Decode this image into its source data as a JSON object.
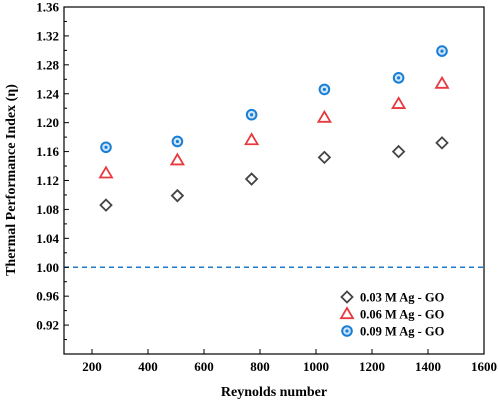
{
  "chart_data": {
    "type": "scatter",
    "title": "",
    "xlabel": "Reynolds number",
    "ylabel": "Thermal Performance Index (η)",
    "xlim": [
      100,
      1600
    ],
    "ylim": [
      0.88,
      1.36
    ],
    "xticks": [
      200,
      400,
      600,
      800,
      1000,
      1200,
      1400,
      1600
    ],
    "yticks": [
      0.92,
      0.96,
      1.0,
      1.04,
      1.08,
      1.12,
      1.16,
      1.2,
      1.24,
      1.28,
      1.32,
      1.36
    ],
    "ytick_labels": [
      "0.92",
      "0.96",
      "1.00",
      "1.04",
      "1.08",
      "1.12",
      "1.16",
      "1.20",
      "1.24",
      "1.28",
      "1.32",
      "1.36"
    ],
    "reference_line": {
      "y": 1.0,
      "style": "dashed",
      "color": "#1f78c8"
    },
    "grid": false,
    "legend_position": "bottom-right",
    "series": [
      {
        "name": "0.03 M Ag - GO",
        "marker": "diamond",
        "color": "#444444",
        "points": [
          [
            250,
            1.086
          ],
          [
            505,
            1.099
          ],
          [
            770,
            1.122
          ],
          [
            1030,
            1.152
          ],
          [
            1295,
            1.16
          ],
          [
            1450,
            1.172
          ]
        ]
      },
      {
        "name": "0.06 M Ag - GO",
        "marker": "triangle",
        "color": "#e8393f",
        "points": [
          [
            250,
            1.13
          ],
          [
            505,
            1.148
          ],
          [
            770,
            1.176
          ],
          [
            1030,
            1.207
          ],
          [
            1295,
            1.226
          ],
          [
            1450,
            1.254
          ]
        ]
      },
      {
        "name": "0.09 M Ag - GO",
        "marker": "circle",
        "color": "#1a7fd4",
        "points": [
          [
            250,
            1.166
          ],
          [
            505,
            1.174
          ],
          [
            770,
            1.211
          ],
          [
            1030,
            1.246
          ],
          [
            1295,
            1.262
          ],
          [
            1450,
            1.299
          ]
        ]
      }
    ]
  }
}
